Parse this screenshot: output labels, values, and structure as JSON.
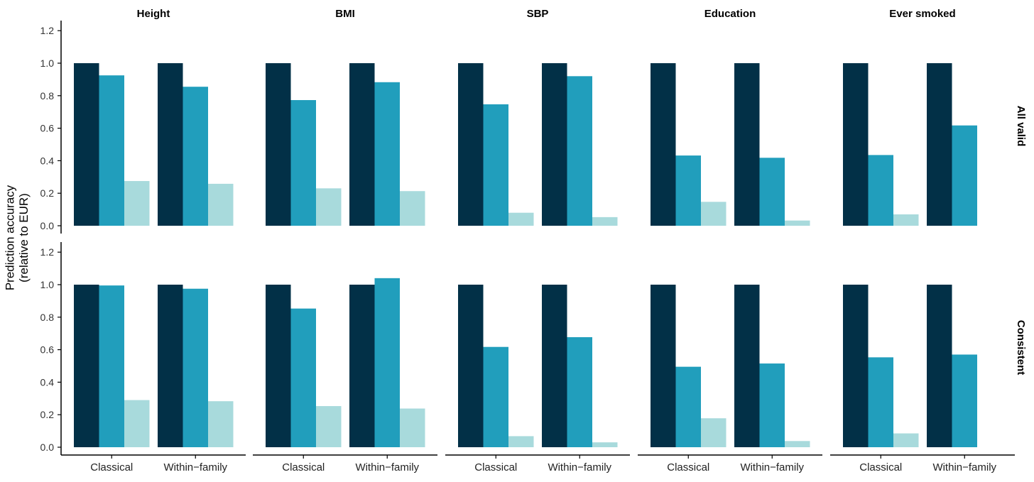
{
  "chart_data": {
    "type": "bar",
    "ylabel": "Prediction accuracy\n(relative to EUR)",
    "ylim": [
      0,
      1.25
    ],
    "yticks": [
      0,
      0.2,
      0.4,
      0.6,
      0.8,
      1.0,
      1.2
    ],
    "ytick_labels": [
      "0.0",
      "0.2",
      "0.4",
      "0.6",
      "0.8",
      "1.0",
      "1.2"
    ],
    "categories": [
      "Classical",
      "Within−family"
    ],
    "columns": [
      "Height",
      "BMI",
      "SBP",
      "Education",
      "Ever smoked"
    ],
    "rows": [
      "All valid",
      "Consistent"
    ],
    "grid": false,
    "legend": "none",
    "series_colors": [
      "#023047",
      "#219ebc",
      "#a8dadc"
    ],
    "panels": [
      [
        {
          "Classical": [
            1.0,
            0.925,
            0.275
          ],
          "Within−family": [
            1.0,
            0.855,
            0.258
          ]
        },
        {
          "Classical": [
            1.0,
            0.773,
            0.23
          ],
          "Within−family": [
            1.0,
            0.883,
            0.213
          ]
        },
        {
          "Classical": [
            1.0,
            0.747,
            0.08
          ],
          "Within−family": [
            1.0,
            0.92,
            0.053
          ]
        },
        {
          "Classical": [
            1.0,
            0.432,
            0.147
          ],
          "Within−family": [
            1.0,
            0.418,
            0.032
          ]
        },
        {
          "Classical": [
            1.0,
            0.435,
            0.07
          ],
          "Within−family": [
            1.0,
            0.617,
            0.0
          ]
        }
      ],
      [
        {
          "Classical": [
            1.0,
            0.995,
            0.29
          ],
          "Within−family": [
            1.0,
            0.975,
            0.283
          ]
        },
        {
          "Classical": [
            1.0,
            0.853,
            0.253
          ],
          "Within−family": [
            1.0,
            1.04,
            0.238
          ]
        },
        {
          "Classical": [
            1.0,
            0.617,
            0.068
          ],
          "Within−family": [
            1.0,
            0.677,
            0.03
          ]
        },
        {
          "Classical": [
            1.0,
            0.495,
            0.178
          ],
          "Within−family": [
            1.0,
            0.515,
            0.038
          ]
        },
        {
          "Classical": [
            1.0,
            0.553,
            0.085
          ],
          "Within−family": [
            1.0,
            0.57,
            0.0
          ]
        }
      ]
    ]
  }
}
